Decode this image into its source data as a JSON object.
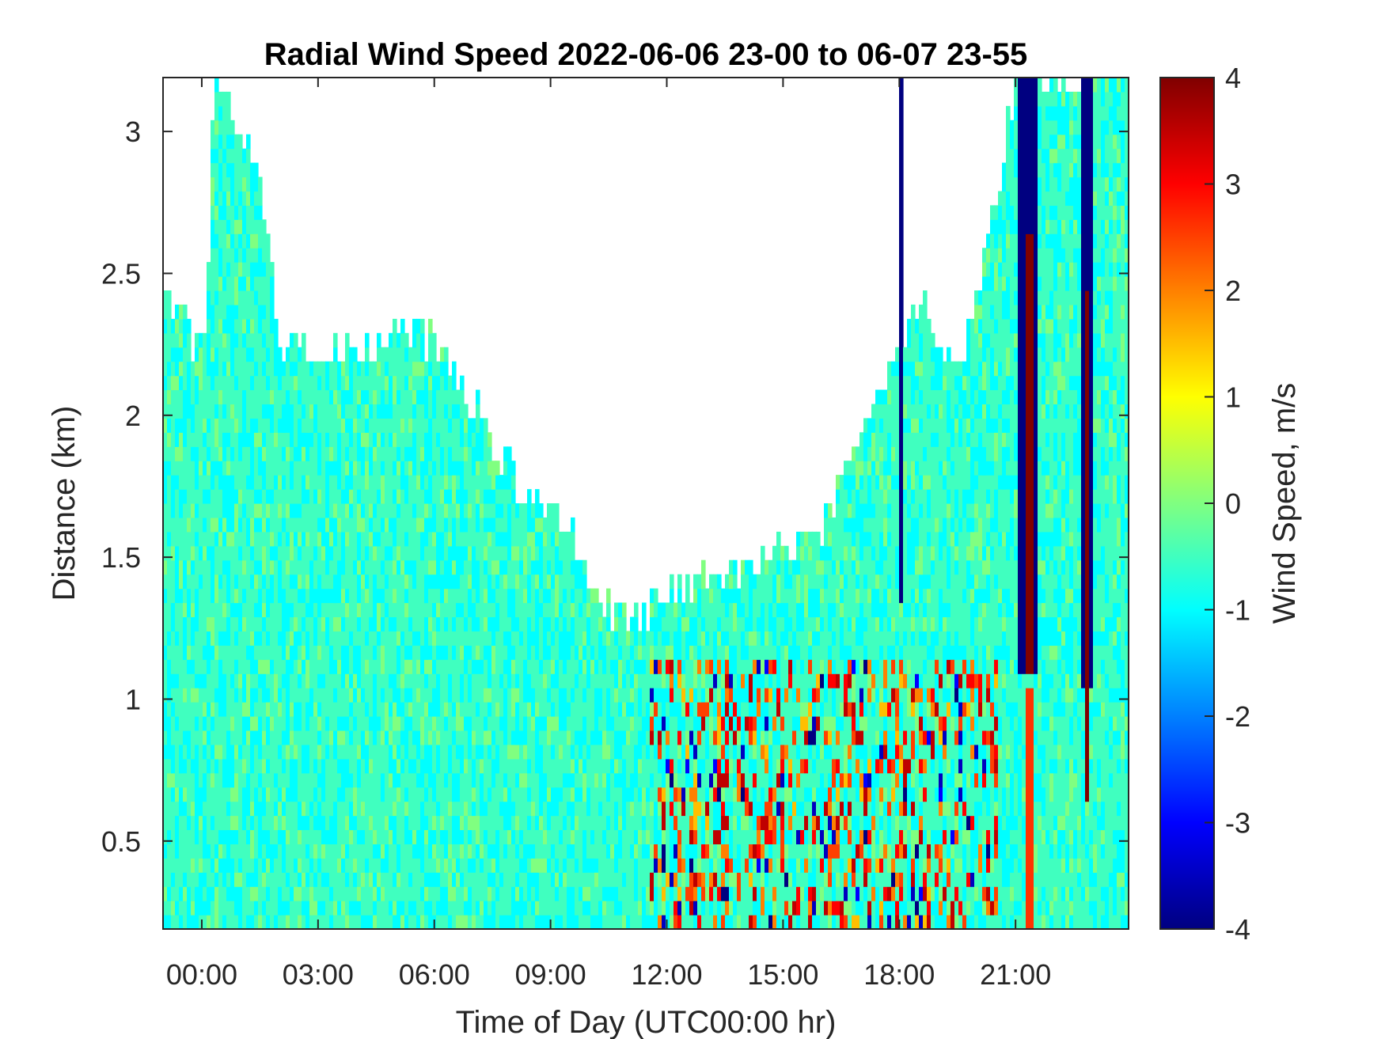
{
  "chart_data": {
    "type": "heatmap",
    "title": "Radial Wind Speed 2022-06-06 23-00 to 06-07 23-55",
    "xlabel": "Time of Day (UTC00:00 hr)",
    "ylabel": "Distance (km)",
    "colorbar_label": "Wind Speed, m/s",
    "colormap": "jet",
    "x_ticks": [
      "00:00",
      "03:00",
      "06:00",
      "09:00",
      "12:00",
      "15:00",
      "18:00",
      "21:00"
    ],
    "y_ticks": [
      "0.5",
      "1",
      "1.5",
      "2",
      "2.5",
      "3"
    ],
    "c_ticks": [
      "-4",
      "-3",
      "-2",
      "-1",
      "0",
      "1",
      "2",
      "3",
      "4"
    ],
    "xlim_hours": [
      -1,
      23.917
    ],
    "ylim_km": [
      0.19,
      3.19
    ],
    "clim": [
      -4,
      4
    ],
    "data_coverage_km": [
      {
        "t": -1.0,
        "top": 2.4
      },
      {
        "t": 0.0,
        "top": 2.2
      },
      {
        "t": 0.3,
        "top": 3.19
      },
      {
        "t": 1.5,
        "top": 2.8
      },
      {
        "t": 2.0,
        "top": 2.2
      },
      {
        "t": 4.0,
        "top": 2.2
      },
      {
        "t": 5.5,
        "top": 2.3
      },
      {
        "t": 7.0,
        "top": 2.0
      },
      {
        "t": 8.0,
        "top": 1.75
      },
      {
        "t": 9.5,
        "top": 1.55
      },
      {
        "t": 10.5,
        "top": 1.25
      },
      {
        "t": 11.5,
        "top": 1.3
      },
      {
        "t": 13.0,
        "top": 1.4
      },
      {
        "t": 14.5,
        "top": 1.45
      },
      {
        "t": 16.0,
        "top": 1.6
      },
      {
        "t": 17.0,
        "top": 1.9
      },
      {
        "t": 18.0,
        "top": 2.2
      },
      {
        "t": 18.5,
        "top": 2.4
      },
      {
        "t": 19.5,
        "top": 2.1
      },
      {
        "t": 20.5,
        "top": 2.8
      },
      {
        "t": 21.0,
        "top": 3.19
      },
      {
        "t": 23.917,
        "top": 3.19
      }
    ],
    "bands": [
      {
        "t0": 17.92,
        "t1": 18.0,
        "d0": 1.3,
        "d1": 3.19,
        "speed": -4
      },
      {
        "t0": 21.0,
        "t1": 21.55,
        "d0": 1.05,
        "d1": 3.19,
        "speed": -4
      },
      {
        "t0": 21.18,
        "t1": 21.38,
        "d0": 1.05,
        "d1": 2.6,
        "speed": 4
      },
      {
        "t0": 21.2,
        "t1": 21.4,
        "d0": 0.19,
        "d1": 1.0,
        "speed": 2.6
      },
      {
        "t0": 22.6,
        "t1": 22.9,
        "d0": 1.0,
        "d1": 3.19,
        "speed": -4
      },
      {
        "t0": 22.72,
        "t1": 22.8,
        "d0": 0.6,
        "d1": 2.4,
        "speed": 4
      }
    ]
  }
}
